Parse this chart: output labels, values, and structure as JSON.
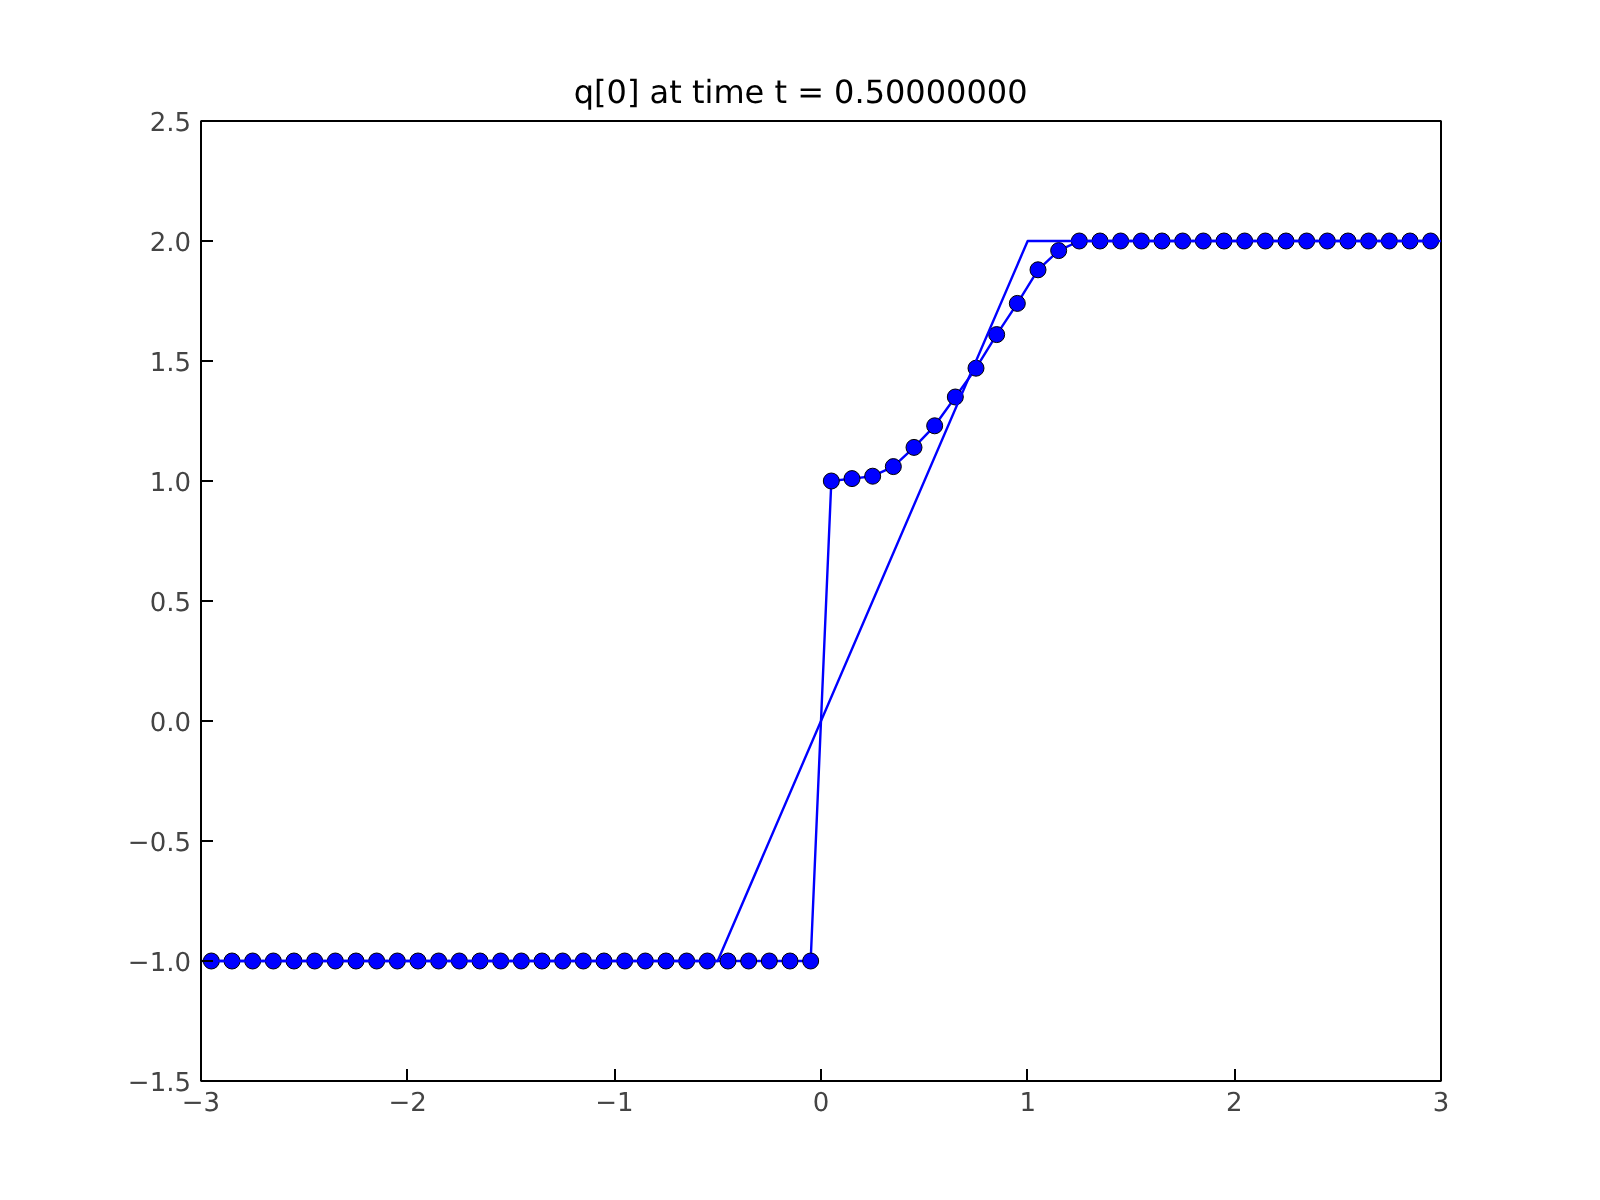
{
  "chart_data": {
    "type": "line",
    "title": "q[0] at time t =     0.50000000",
    "xlim": [
      -3,
      3
    ],
    "ylim": [
      -1.5,
      2.5
    ],
    "xticks": [
      {
        "value": -3,
        "label": "−3"
      },
      {
        "value": -2,
        "label": "−2"
      },
      {
        "value": -1,
        "label": "−1"
      },
      0,
      1,
      2,
      3
    ],
    "yticks": [
      {
        "value": -1.5,
        "label": "−1.5"
      },
      {
        "value": -1.0,
        "label": "−1.0"
      },
      {
        "value": -0.5,
        "label": "−0.5"
      },
      {
        "value": 0,
        "label": "0.0"
      },
      {
        "value": 0.5,
        "label": "0.5"
      },
      {
        "value": 1.0,
        "label": "1.0"
      },
      {
        "value": 1.5,
        "label": "1.5"
      },
      {
        "value": 2.0,
        "label": "2.0"
      },
      {
        "value": 2.5,
        "label": "2.5"
      }
    ],
    "grid": false,
    "series": [
      {
        "color": "#0000ff",
        "marker": "circle",
        "x": [
          -2.95,
          -2.85,
          -2.75,
          -2.65,
          -2.55,
          -2.45,
          -2.35,
          -2.25,
          -2.15,
          -2.05,
          -1.95,
          -1.85,
          -1.75,
          -1.65,
          -1.55,
          -1.45,
          -1.35,
          -1.25,
          -1.15,
          -1.05,
          -0.95,
          -0.85,
          -0.75,
          -0.65,
          -0.55,
          -0.45,
          -0.35,
          -0.25,
          -0.15,
          -0.05,
          0.05,
          0.15,
          0.25,
          0.35,
          0.45,
          0.55,
          0.65,
          0.75,
          0.85,
          0.95,
          1.05,
          1.15,
          1.25,
          1.35,
          1.45,
          1.55,
          1.65,
          1.75,
          1.85,
          1.95,
          2.05,
          2.15,
          2.25,
          2.35,
          2.45,
          2.55,
          2.65,
          2.75,
          2.85,
          2.95
        ],
        "values": [
          -1,
          -1,
          -1,
          -1,
          -1,
          -1,
          -1,
          -1,
          -1,
          -1,
          -1,
          -1,
          -1,
          -1,
          -1,
          -1,
          -1,
          -1,
          -1,
          -1,
          -1,
          -1,
          -1,
          -1,
          -1,
          -1,
          -1,
          -1,
          -1,
          -1,
          1.0,
          1.01,
          1.02,
          1.06,
          1.14,
          1.23,
          1.35,
          1.47,
          1.61,
          1.74,
          1.88,
          1.96,
          2,
          2,
          2,
          2,
          2,
          2,
          2,
          2,
          2,
          2,
          2,
          2,
          2,
          2,
          2,
          2,
          2,
          2
        ]
      },
      {
        "color": "#0000ff",
        "marker": "none",
        "x": [
          -3,
          -0.5,
          1,
          3
        ],
        "values": [
          -1,
          -1,
          2,
          2
        ]
      }
    ]
  }
}
